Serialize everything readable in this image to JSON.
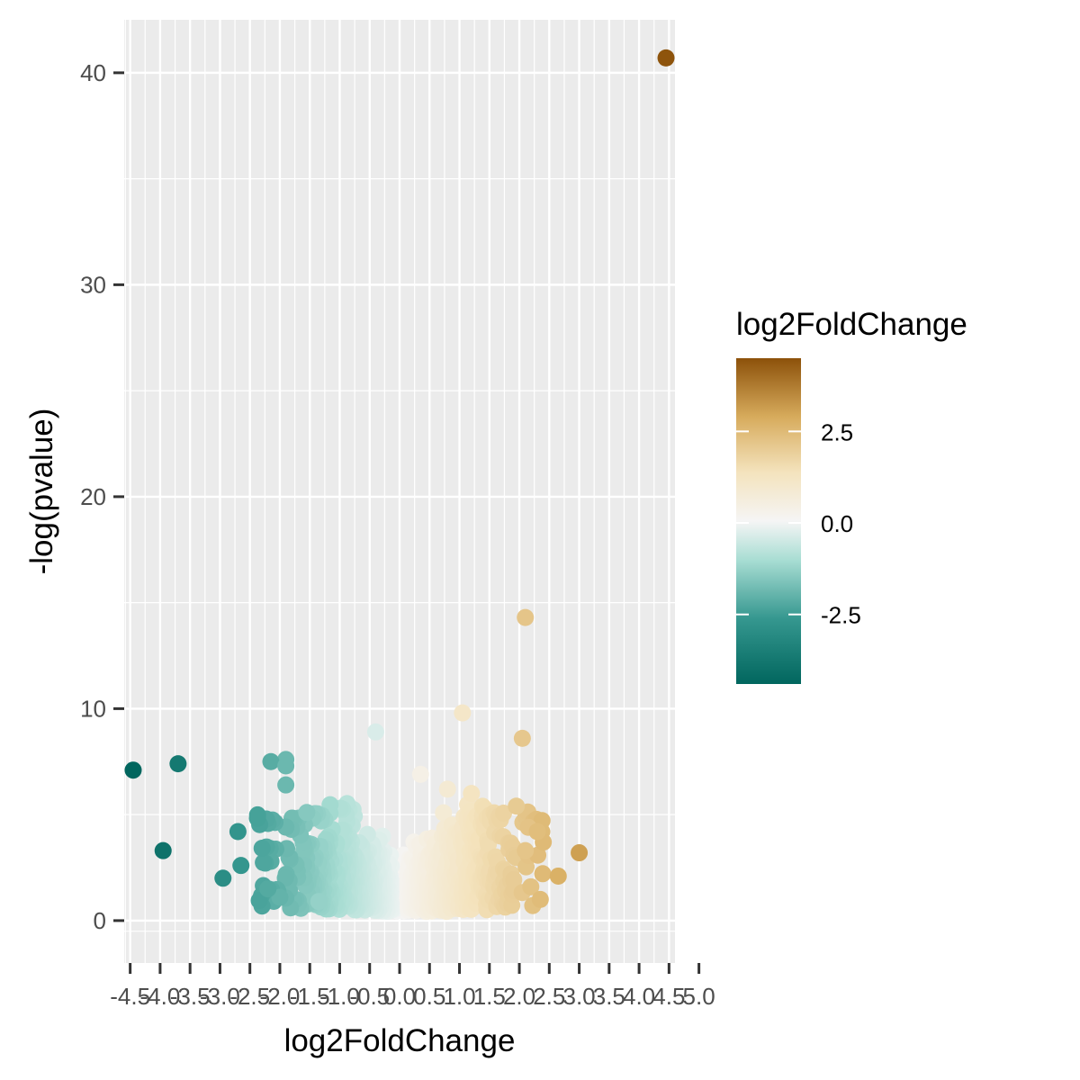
{
  "chart_data": {
    "type": "scatter",
    "title": "",
    "xlabel": "log2FoldChange",
    "ylabel": "-log(pvalue)",
    "xlim": [
      -4.6,
      4.6
    ],
    "ylim": [
      -2,
      42.5
    ],
    "x_ticks": [
      -4.5,
      -4.0,
      -3.5,
      -3.0,
      -2.5,
      -2.0,
      -1.5,
      -1.0,
      -0.5,
      0.0,
      0.5,
      1.0,
      1.5,
      2.0,
      2.5,
      3.0,
      3.5,
      4.0,
      4.5,
      5.0
    ],
    "x_tick_labels": [
      "-4.5",
      "-4.0",
      "-3.5",
      "-3.0",
      "-2.5",
      "-2.0",
      "-1.5",
      "-1.0",
      "-0.5",
      "0.0",
      "0.5",
      "1.0",
      "1.5",
      "2.0",
      "2.5",
      "3.0",
      "3.5",
      "4.0",
      "4.5",
      "5.0"
    ],
    "y_ticks": [
      0,
      10,
      20,
      30,
      40
    ],
    "y_tick_labels": [
      "0",
      "10",
      "20",
      "30",
      "40"
    ],
    "grid": true,
    "legend": {
      "title": "log2FoldChange",
      "position": "right",
      "type": "colorbar",
      "breaks": [
        2.5,
        0.0,
        -2.5
      ],
      "break_labels": [
        "2.5",
        "0.0",
        "-2.5"
      ],
      "range": [
        -4.4,
        4.5
      ],
      "colors": {
        "low": "#01665e",
        "mid": "#f5f5f5",
        "high": "#8c510a"
      }
    },
    "points": [
      {
        "x": 4.45,
        "y": 40.7
      },
      {
        "x": -4.45,
        "y": 7.1
      },
      {
        "x": -3.7,
        "y": 7.4
      },
      {
        "x": -3.95,
        "y": 3.3
      },
      {
        "x": -2.95,
        "y": 2.0
      },
      {
        "x": -2.7,
        "y": 4.2
      },
      {
        "x": 2.1,
        "y": 14.3
      },
      {
        "x": 2.05,
        "y": 8.6
      },
      {
        "x": 1.05,
        "y": 9.8
      },
      {
        "x": -0.4,
        "y": 8.9
      },
      {
        "x": 3.0,
        "y": 3.2
      },
      {
        "x": 2.65,
        "y": 2.1
      },
      {
        "x": 2.4,
        "y": 3.7
      },
      {
        "x": 2.35,
        "y": 1.0
      },
      {
        "x": 1.95,
        "y": 5.4
      },
      {
        "x": -1.9,
        "y": 7.6
      },
      {
        "x": -2.15,
        "y": 7.5
      },
      {
        "x": -1.9,
        "y": 7.3
      },
      {
        "x": -1.9,
        "y": 6.4
      },
      {
        "x": -1.55,
        "y": 5.1
      },
      {
        "x": 0.35,
        "y": 6.9
      },
      {
        "x": 0.8,
        "y": 6.2
      },
      {
        "x": 1.2,
        "y": 6.0
      },
      {
        "x": 2.15,
        "y": 4.4
      },
      {
        "x": 2.3,
        "y": 4.2
      },
      {
        "x": 2.1,
        "y": 3.3
      },
      {
        "x": -2.0,
        "y": 1.1
      },
      {
        "x": -1.35,
        "y": 0.9
      },
      {
        "x": -2.2,
        "y": 1.5
      },
      {
        "x": -2.65,
        "y": 2.6
      }
    ]
  }
}
